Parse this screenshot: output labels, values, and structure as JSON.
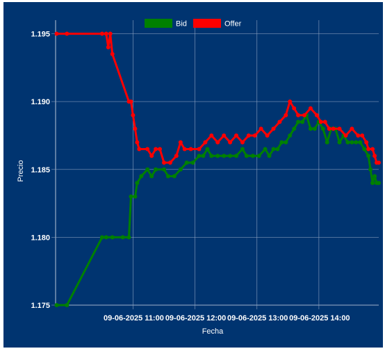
{
  "chart_data": {
    "type": "line",
    "xlabel": "Fecha",
    "ylabel": "Precio",
    "ylim": [
      1.175,
      1.196
    ],
    "yticks": [
      "1.175",
      "1.180",
      "1.185",
      "1.190",
      "1.195"
    ],
    "xlim": [
      "09-06-2025 09:45",
      "09-06-2025 14:58"
    ],
    "xticks": [
      {
        "at": "09-06-2025 11:00",
        "label": "09-06-2025 11:00"
      },
      {
        "at": "09-06-2025 12:00",
        "label": "09-06-2025 12:00"
      },
      {
        "at": "09-06-2025 13:00",
        "label": "09-06-2025 13:00"
      },
      {
        "at": "09-06-2025 14:00",
        "label": "09-06-2025 14:00"
      }
    ],
    "grid": true,
    "legend_position": "top-center",
    "series": [
      {
        "name": "Bid",
        "color": "#008000",
        "points": [
          [
            "09:46",
            1.175
          ],
          [
            "09:56",
            1.175
          ],
          [
            "10:30",
            1.18
          ],
          [
            "10:34",
            1.18
          ],
          [
            "10:40",
            1.18
          ],
          [
            "10:50",
            1.18
          ],
          [
            "10:56",
            1.18
          ],
          [
            "10:58",
            1.183
          ],
          [
            "11:02",
            1.183
          ],
          [
            "11:04",
            1.184
          ],
          [
            "11:08",
            1.1845
          ],
          [
            "11:14",
            1.185
          ],
          [
            "11:18",
            1.1845
          ],
          [
            "11:22",
            1.185
          ],
          [
            "11:30",
            1.185
          ],
          [
            "11:34",
            1.1845
          ],
          [
            "11:40",
            1.1845
          ],
          [
            "11:46",
            1.185
          ],
          [
            "11:52",
            1.1855
          ],
          [
            "11:58",
            1.1855
          ],
          [
            "12:04",
            1.186
          ],
          [
            "12:08",
            1.186
          ],
          [
            "12:12",
            1.1865
          ],
          [
            "12:16",
            1.186
          ],
          [
            "12:22",
            1.186
          ],
          [
            "12:28",
            1.186
          ],
          [
            "12:34",
            1.186
          ],
          [
            "12:40",
            1.186
          ],
          [
            "12:46",
            1.1865
          ],
          [
            "12:50",
            1.186
          ],
          [
            "12:56",
            1.186
          ],
          [
            "13:02",
            1.186
          ],
          [
            "13:08",
            1.1865
          ],
          [
            "13:12",
            1.186
          ],
          [
            "13:16",
            1.1865
          ],
          [
            "13:20",
            1.1865
          ],
          [
            "13:24",
            1.187
          ],
          [
            "13:28",
            1.187
          ],
          [
            "13:32",
            1.1875
          ],
          [
            "13:36",
            1.188
          ],
          [
            "13:40",
            1.1885
          ],
          [
            "13:44",
            1.1885
          ],
          [
            "13:48",
            1.189
          ],
          [
            "13:52",
            1.188
          ],
          [
            "13:56",
            1.188
          ],
          [
            "14:00",
            1.1885
          ],
          [
            "14:04",
            1.188
          ],
          [
            "14:08",
            1.187
          ],
          [
            "14:12",
            1.188
          ],
          [
            "14:16",
            1.188
          ],
          [
            "14:20",
            1.187
          ],
          [
            "14:24",
            1.1875
          ],
          [
            "14:28",
            1.187
          ],
          [
            "14:32",
            1.187
          ],
          [
            "14:36",
            1.187
          ],
          [
            "14:40",
            1.187
          ],
          [
            "14:44",
            1.1865
          ],
          [
            "14:48",
            1.186
          ],
          [
            "14:50",
            1.185
          ],
          [
            "14:52",
            1.184
          ],
          [
            "14:54",
            1.1845
          ],
          [
            "14:56",
            1.184
          ],
          [
            "14:58",
            1.184
          ]
        ]
      },
      {
        "name": "Offer",
        "color": "#ff0000",
        "points": [
          [
            "09:46",
            1.195
          ],
          [
            "09:56",
            1.195
          ],
          [
            "10:30",
            1.195
          ],
          [
            "10:34",
            1.195
          ],
          [
            "10:36",
            1.194
          ],
          [
            "10:38",
            1.195
          ],
          [
            "10:40",
            1.1935
          ],
          [
            "10:56",
            1.19
          ],
          [
            "10:58",
            1.19
          ],
          [
            "11:00",
            1.189
          ],
          [
            "11:02",
            1.188
          ],
          [
            "11:04",
            1.187
          ],
          [
            "11:06",
            1.1865
          ],
          [
            "11:14",
            1.1865
          ],
          [
            "11:18",
            1.186
          ],
          [
            "11:22",
            1.1865
          ],
          [
            "11:26",
            1.1865
          ],
          [
            "11:30",
            1.1855
          ],
          [
            "11:36",
            1.1855
          ],
          [
            "11:42",
            1.186
          ],
          [
            "11:46",
            1.187
          ],
          [
            "11:50",
            1.1865
          ],
          [
            "11:56",
            1.1865
          ],
          [
            "12:04",
            1.1865
          ],
          [
            "12:10",
            1.187
          ],
          [
            "12:16",
            1.1875
          ],
          [
            "12:22",
            1.187
          ],
          [
            "12:28",
            1.1875
          ],
          [
            "12:34",
            1.187
          ],
          [
            "12:40",
            1.1875
          ],
          [
            "12:46",
            1.187
          ],
          [
            "12:52",
            1.1875
          ],
          [
            "12:58",
            1.1875
          ],
          [
            "13:04",
            1.188
          ],
          [
            "13:10",
            1.1875
          ],
          [
            "13:16",
            1.188
          ],
          [
            "13:22",
            1.1885
          ],
          [
            "13:28",
            1.189
          ],
          [
            "13:32",
            1.19
          ],
          [
            "13:36",
            1.1895
          ],
          [
            "13:40",
            1.189
          ],
          [
            "13:46",
            1.189
          ],
          [
            "13:52",
            1.1895
          ],
          [
            "13:58",
            1.189
          ],
          [
            "14:02",
            1.1885
          ],
          [
            "14:06",
            1.1885
          ],
          [
            "14:10",
            1.188
          ],
          [
            "14:14",
            1.188
          ],
          [
            "14:20",
            1.188
          ],
          [
            "14:26",
            1.1875
          ],
          [
            "14:32",
            1.188
          ],
          [
            "14:38",
            1.1875
          ],
          [
            "14:42",
            1.1875
          ],
          [
            "14:46",
            1.187
          ],
          [
            "14:48",
            1.1865
          ],
          [
            "14:52",
            1.1865
          ],
          [
            "14:54",
            1.186
          ],
          [
            "14:56",
            1.1855
          ],
          [
            "14:58",
            1.1855
          ]
        ]
      }
    ]
  }
}
